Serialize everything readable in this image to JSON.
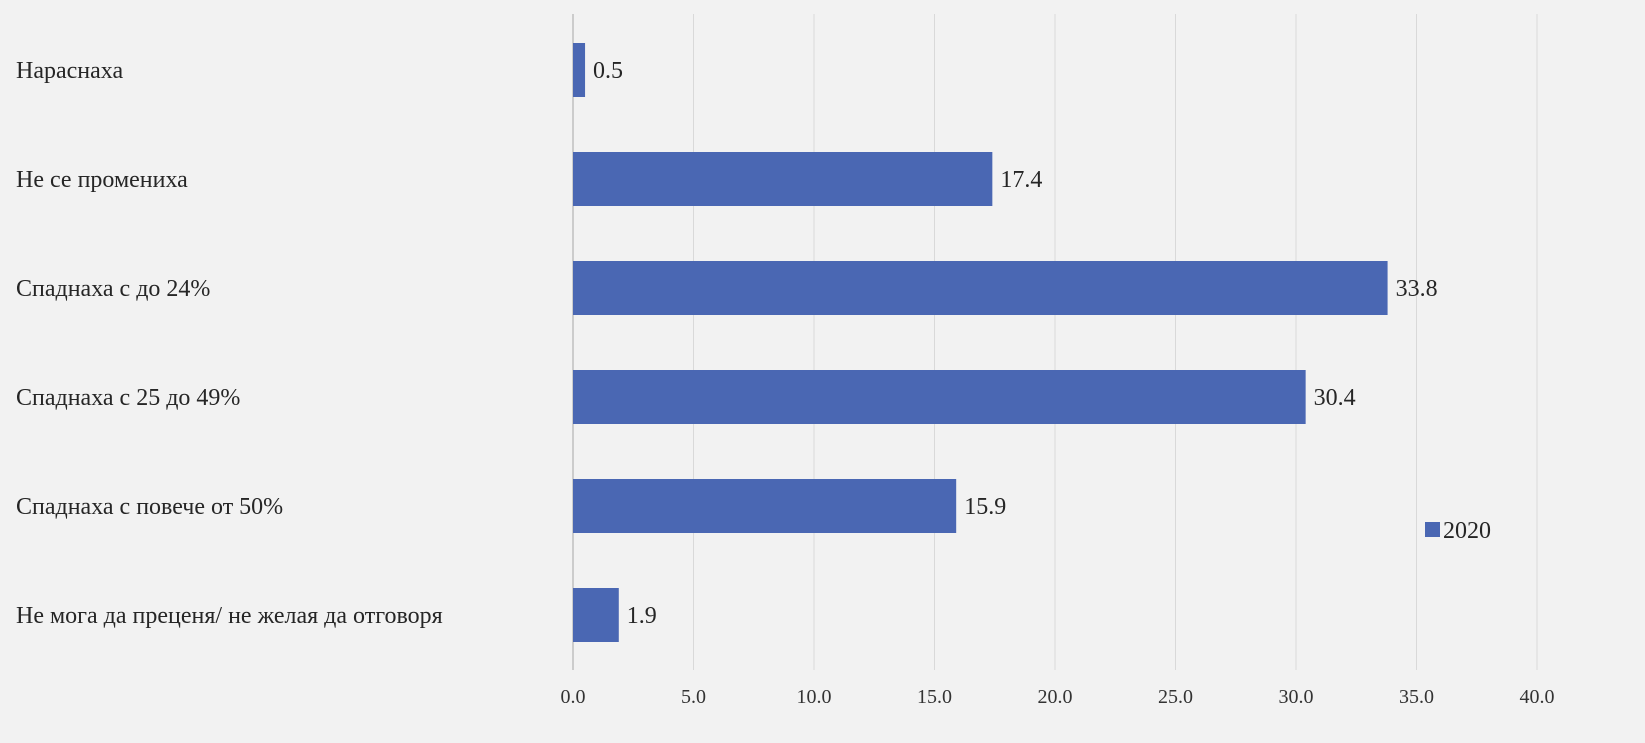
{
  "chart_data": {
    "type": "bar",
    "orientation": "horizontal",
    "categories": [
      "Нараснаха",
      "Не се промениха",
      "Спаднаха с до 24%",
      "Спаднаха с 25 до 49%",
      "Спаднаха с повече от 50%",
      "Не мога да преценя/ не желая да отговоря"
    ],
    "series": [
      {
        "name": "2020",
        "values": [
          0.5,
          17.4,
          33.8,
          30.4,
          15.9,
          1.9
        ],
        "value_labels": [
          "0.5",
          "17.4",
          "33.8",
          "30.4",
          "15.9",
          "1.9"
        ],
        "color": "#4a67b3"
      }
    ],
    "xlim": [
      0,
      40
    ],
    "x_ticks": [
      0,
      5,
      10,
      15,
      20,
      25,
      30,
      35,
      40
    ],
    "x_tick_labels": [
      "0.0",
      "5.0",
      "10.0",
      "15.0",
      "20.0",
      "25.0",
      "30.0",
      "35.0",
      "40.0"
    ],
    "grid": true,
    "legend_position": "right",
    "title": "",
    "xlabel": "",
    "ylabel": ""
  },
  "colors": {
    "background": "#f2f2f2",
    "bar": "#4a67b3",
    "gridline": "#d9d9d9",
    "text": "#262626"
  }
}
